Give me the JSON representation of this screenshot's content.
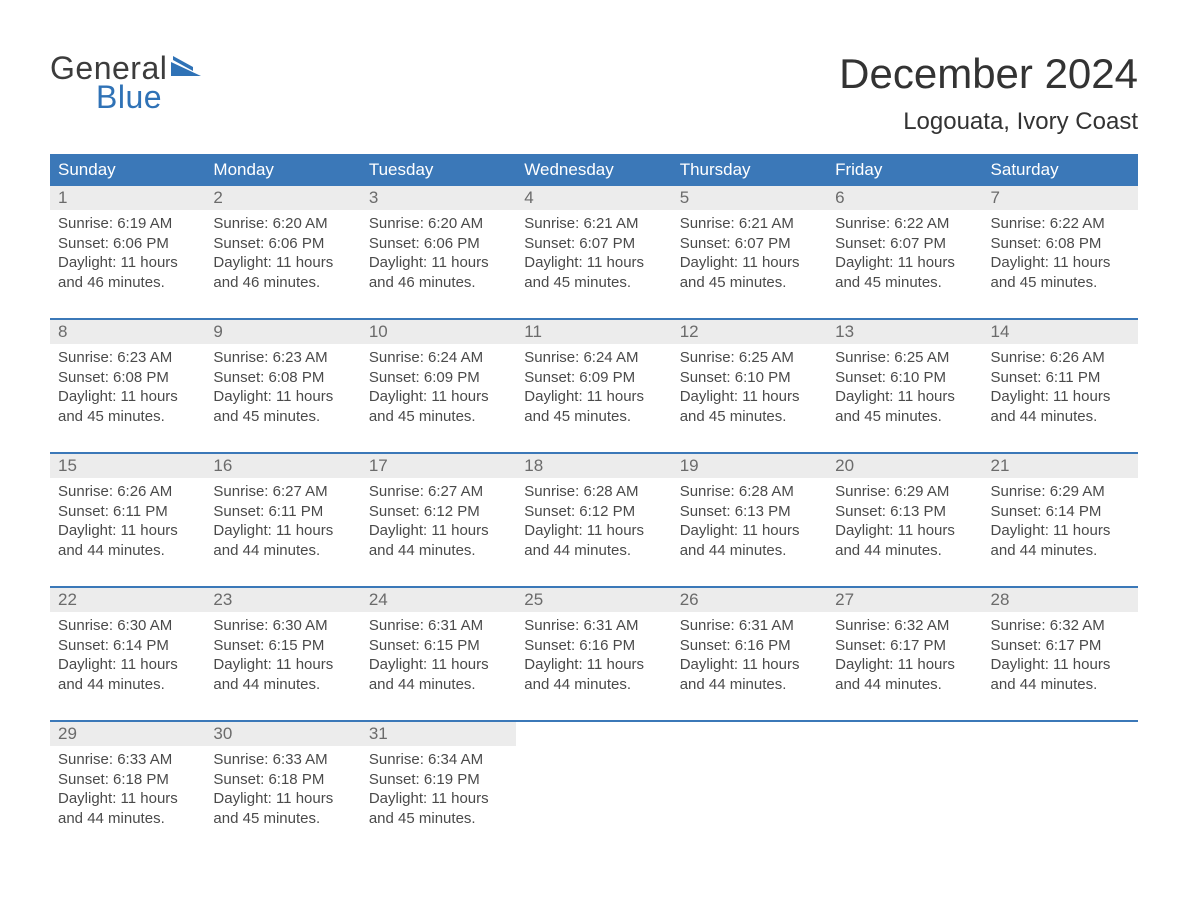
{
  "brand": {
    "word1": "General",
    "word2": "Blue",
    "text_color": "#3c3c3c",
    "accent_color": "#2f72b6"
  },
  "title": {
    "month": "December 2024",
    "location": "Logouata, Ivory Coast",
    "month_fontsize": 42,
    "location_fontsize": 24,
    "color": "#333333"
  },
  "calendar": {
    "header_bg": "#3b78b8",
    "header_fg": "#ffffff",
    "daynum_bg": "#ececec",
    "daynum_fg": "#6b6b6b",
    "body_fg": "#4a4a4a",
    "row_divider_color": "#3b78b8",
    "background": "#ffffff",
    "day_names": [
      "Sunday",
      "Monday",
      "Tuesday",
      "Wednesday",
      "Thursday",
      "Friday",
      "Saturday"
    ],
    "weeks": [
      [
        {
          "n": "1",
          "sunrise": "Sunrise: 6:19 AM",
          "sunset": "Sunset: 6:06 PM",
          "day1": "Daylight: 11 hours",
          "day2": "and 46 minutes."
        },
        {
          "n": "2",
          "sunrise": "Sunrise: 6:20 AM",
          "sunset": "Sunset: 6:06 PM",
          "day1": "Daylight: 11 hours",
          "day2": "and 46 minutes."
        },
        {
          "n": "3",
          "sunrise": "Sunrise: 6:20 AM",
          "sunset": "Sunset: 6:06 PM",
          "day1": "Daylight: 11 hours",
          "day2": "and 46 minutes."
        },
        {
          "n": "4",
          "sunrise": "Sunrise: 6:21 AM",
          "sunset": "Sunset: 6:07 PM",
          "day1": "Daylight: 11 hours",
          "day2": "and 45 minutes."
        },
        {
          "n": "5",
          "sunrise": "Sunrise: 6:21 AM",
          "sunset": "Sunset: 6:07 PM",
          "day1": "Daylight: 11 hours",
          "day2": "and 45 minutes."
        },
        {
          "n": "6",
          "sunrise": "Sunrise: 6:22 AM",
          "sunset": "Sunset: 6:07 PM",
          "day1": "Daylight: 11 hours",
          "day2": "and 45 minutes."
        },
        {
          "n": "7",
          "sunrise": "Sunrise: 6:22 AM",
          "sunset": "Sunset: 6:08 PM",
          "day1": "Daylight: 11 hours",
          "day2": "and 45 minutes."
        }
      ],
      [
        {
          "n": "8",
          "sunrise": "Sunrise: 6:23 AM",
          "sunset": "Sunset: 6:08 PM",
          "day1": "Daylight: 11 hours",
          "day2": "and 45 minutes."
        },
        {
          "n": "9",
          "sunrise": "Sunrise: 6:23 AM",
          "sunset": "Sunset: 6:08 PM",
          "day1": "Daylight: 11 hours",
          "day2": "and 45 minutes."
        },
        {
          "n": "10",
          "sunrise": "Sunrise: 6:24 AM",
          "sunset": "Sunset: 6:09 PM",
          "day1": "Daylight: 11 hours",
          "day2": "and 45 minutes."
        },
        {
          "n": "11",
          "sunrise": "Sunrise: 6:24 AM",
          "sunset": "Sunset: 6:09 PM",
          "day1": "Daylight: 11 hours",
          "day2": "and 45 minutes."
        },
        {
          "n": "12",
          "sunrise": "Sunrise: 6:25 AM",
          "sunset": "Sunset: 6:10 PM",
          "day1": "Daylight: 11 hours",
          "day2": "and 45 minutes."
        },
        {
          "n": "13",
          "sunrise": "Sunrise: 6:25 AM",
          "sunset": "Sunset: 6:10 PM",
          "day1": "Daylight: 11 hours",
          "day2": "and 45 minutes."
        },
        {
          "n": "14",
          "sunrise": "Sunrise: 6:26 AM",
          "sunset": "Sunset: 6:11 PM",
          "day1": "Daylight: 11 hours",
          "day2": "and 44 minutes."
        }
      ],
      [
        {
          "n": "15",
          "sunrise": "Sunrise: 6:26 AM",
          "sunset": "Sunset: 6:11 PM",
          "day1": "Daylight: 11 hours",
          "day2": "and 44 minutes."
        },
        {
          "n": "16",
          "sunrise": "Sunrise: 6:27 AM",
          "sunset": "Sunset: 6:11 PM",
          "day1": "Daylight: 11 hours",
          "day2": "and 44 minutes."
        },
        {
          "n": "17",
          "sunrise": "Sunrise: 6:27 AM",
          "sunset": "Sunset: 6:12 PM",
          "day1": "Daylight: 11 hours",
          "day2": "and 44 minutes."
        },
        {
          "n": "18",
          "sunrise": "Sunrise: 6:28 AM",
          "sunset": "Sunset: 6:12 PM",
          "day1": "Daylight: 11 hours",
          "day2": "and 44 minutes."
        },
        {
          "n": "19",
          "sunrise": "Sunrise: 6:28 AM",
          "sunset": "Sunset: 6:13 PM",
          "day1": "Daylight: 11 hours",
          "day2": "and 44 minutes."
        },
        {
          "n": "20",
          "sunrise": "Sunrise: 6:29 AM",
          "sunset": "Sunset: 6:13 PM",
          "day1": "Daylight: 11 hours",
          "day2": "and 44 minutes."
        },
        {
          "n": "21",
          "sunrise": "Sunrise: 6:29 AM",
          "sunset": "Sunset: 6:14 PM",
          "day1": "Daylight: 11 hours",
          "day2": "and 44 minutes."
        }
      ],
      [
        {
          "n": "22",
          "sunrise": "Sunrise: 6:30 AM",
          "sunset": "Sunset: 6:14 PM",
          "day1": "Daylight: 11 hours",
          "day2": "and 44 minutes."
        },
        {
          "n": "23",
          "sunrise": "Sunrise: 6:30 AM",
          "sunset": "Sunset: 6:15 PM",
          "day1": "Daylight: 11 hours",
          "day2": "and 44 minutes."
        },
        {
          "n": "24",
          "sunrise": "Sunrise: 6:31 AM",
          "sunset": "Sunset: 6:15 PM",
          "day1": "Daylight: 11 hours",
          "day2": "and 44 minutes."
        },
        {
          "n": "25",
          "sunrise": "Sunrise: 6:31 AM",
          "sunset": "Sunset: 6:16 PM",
          "day1": "Daylight: 11 hours",
          "day2": "and 44 minutes."
        },
        {
          "n": "26",
          "sunrise": "Sunrise: 6:31 AM",
          "sunset": "Sunset: 6:16 PM",
          "day1": "Daylight: 11 hours",
          "day2": "and 44 minutes."
        },
        {
          "n": "27",
          "sunrise": "Sunrise: 6:32 AM",
          "sunset": "Sunset: 6:17 PM",
          "day1": "Daylight: 11 hours",
          "day2": "and 44 minutes."
        },
        {
          "n": "28",
          "sunrise": "Sunrise: 6:32 AM",
          "sunset": "Sunset: 6:17 PM",
          "day1": "Daylight: 11 hours",
          "day2": "and 44 minutes."
        }
      ],
      [
        {
          "n": "29",
          "sunrise": "Sunrise: 6:33 AM",
          "sunset": "Sunset: 6:18 PM",
          "day1": "Daylight: 11 hours",
          "day2": "and 44 minutes."
        },
        {
          "n": "30",
          "sunrise": "Sunrise: 6:33 AM",
          "sunset": "Sunset: 6:18 PM",
          "day1": "Daylight: 11 hours",
          "day2": "and 45 minutes."
        },
        {
          "n": "31",
          "sunrise": "Sunrise: 6:34 AM",
          "sunset": "Sunset: 6:19 PM",
          "day1": "Daylight: 11 hours",
          "day2": "and 45 minutes."
        },
        {
          "empty": true
        },
        {
          "empty": true
        },
        {
          "empty": true
        },
        {
          "empty": true
        }
      ]
    ]
  }
}
